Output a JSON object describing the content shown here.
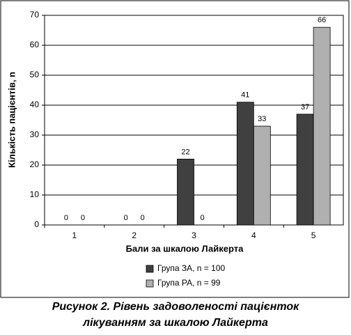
{
  "chart_data": {
    "type": "bar",
    "y_label": "Кількість пацієнтів, n",
    "x_label": "Бали за шкалою Лайкерта",
    "categories": [
      "1",
      "2",
      "3",
      "4",
      "5"
    ],
    "series": [
      {
        "name": "Група ЗА, n = 100",
        "color": "#404040",
        "values": [
          0,
          0,
          22,
          41,
          37
        ]
      },
      {
        "name": "Група РА, n = 99",
        "color": "#b0b0b0",
        "values": [
          0,
          0,
          0,
          33,
          66
        ]
      }
    ],
    "ylim": [
      0,
      70
    ],
    "yticks": [
      0,
      10,
      20,
      30,
      40,
      50,
      60,
      70
    ],
    "grid": true,
    "legend": "bottom"
  },
  "caption": [
    "Рисунок 2.  Рівень задоволеності пацієнток",
    "лікуванням за шкалою Лайкерта"
  ]
}
